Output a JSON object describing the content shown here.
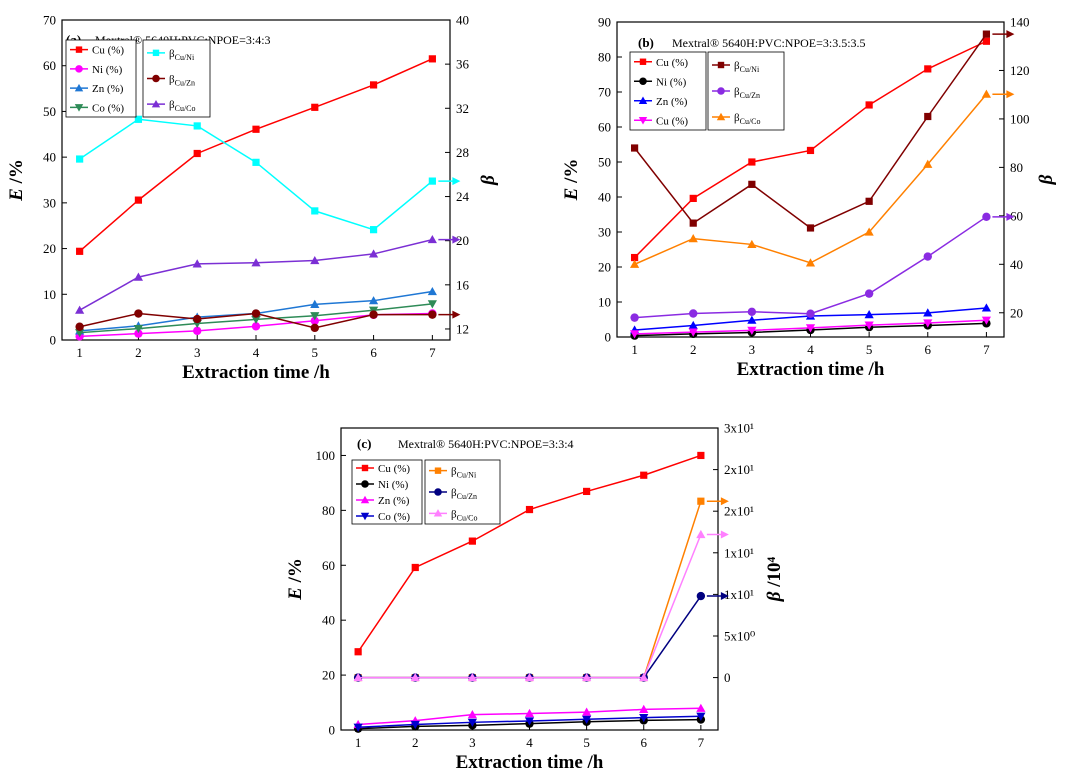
{
  "chart_data": [
    {
      "type": "line",
      "panel": "(a)",
      "title": "Mextral® 5640H:PVC:NPOE=3:4:3",
      "xlabel": "Extraction time /h",
      "ylabel_main": "E",
      "ylabel_unit": " /%",
      "y2label_main": "β",
      "y2label_unit": "",
      "x": [
        1,
        2,
        3,
        4,
        5,
        6,
        7
      ],
      "xlim": [
        0.7,
        7.3
      ],
      "ylim": [
        0,
        70
      ],
      "y2lim": [
        11,
        40
      ],
      "yticks": [
        0,
        10,
        20,
        30,
        40,
        50,
        60,
        70
      ],
      "y2ticks": [
        12,
        16,
        20,
        24,
        28,
        32,
        36,
        40
      ],
      "y2tick_labels": [
        "12",
        "16",
        "20",
        "24",
        "28",
        "32",
        "36",
        "40"
      ],
      "series": [
        {
          "name": "Cu (%)",
          "axis": "left",
          "color": "#ff0000",
          "marker": "square",
          "values": [
            19.4,
            30.6,
            40.8,
            46.1,
            50.9,
            55.8,
            61.5
          ]
        },
        {
          "name": "Ni (%)",
          "axis": "left",
          "color": "#ff00ff",
          "marker": "circle",
          "values": [
            0.8,
            1.4,
            2.0,
            3.0,
            4.2,
            5.5,
            5.8
          ]
        },
        {
          "name": "Zn (%)",
          "axis": "left",
          "color": "#1f77d4",
          "marker": "triangle-up",
          "values": [
            2.0,
            3.1,
            5.0,
            5.8,
            7.8,
            8.6,
            10.6
          ]
        },
        {
          "name": "Co (%)",
          "axis": "left",
          "color": "#2e8b57",
          "marker": "triangle-down",
          "values": [
            1.6,
            2.5,
            3.6,
            4.5,
            5.3,
            6.5,
            7.9
          ]
        },
        {
          "name": "βCu/Ni",
          "sub": "Cu/Ni",
          "axis": "right",
          "color": "#00ffff",
          "marker": "square",
          "values": [
            27.4,
            31.0,
            30.4,
            27.1,
            22.7,
            21.0,
            25.4
          ]
        },
        {
          "name": "βCu/Zn",
          "sub": "Cu/Zn",
          "axis": "right",
          "color": "#800000",
          "marker": "circle",
          "values": [
            12.2,
            13.4,
            12.9,
            13.4,
            12.1,
            13.3,
            13.3
          ]
        },
        {
          "name": "βCu/Co",
          "sub": "Cu/Co",
          "axis": "right",
          "color": "#7b2fd4",
          "marker": "triangle-up",
          "values": [
            13.7,
            16.7,
            17.9,
            18.0,
            18.2,
            18.8,
            20.1
          ]
        }
      ]
    },
    {
      "type": "line",
      "panel": "(b)",
      "title": "Mextral® 5640H:PVC:NPOE=3:3.5:3.5",
      "xlabel": "Extraction time /h",
      "ylabel_main": "E",
      "ylabel_unit": " /%",
      "y2label_main": "β",
      "y2label_unit": "",
      "x": [
        1,
        2,
        3,
        4,
        5,
        6,
        7
      ],
      "xlim": [
        0.7,
        7.3
      ],
      "ylim": [
        0,
        90
      ],
      "y2lim": [
        10,
        140
      ],
      "yticks": [
        0,
        10,
        20,
        30,
        40,
        50,
        60,
        70,
        80,
        90
      ],
      "y2ticks": [
        20,
        40,
        60,
        80,
        100,
        120,
        140
      ],
      "y2tick_labels": [
        "20",
        "40",
        "60",
        "80",
        "100",
        "120",
        "140"
      ],
      "series": [
        {
          "name": "Cu (%)",
          "axis": "left",
          "color": "#ff0000",
          "marker": "square",
          "values": [
            22.7,
            39.6,
            50.0,
            53.3,
            66.3,
            76.6,
            84.5
          ]
        },
        {
          "name": "Ni (%)",
          "axis": "left",
          "color": "#000000",
          "marker": "circle",
          "values": [
            0.4,
            0.9,
            1.3,
            2.0,
            2.8,
            3.3,
            3.9
          ]
        },
        {
          "name": "Zn (%)",
          "axis": "left",
          "color": "#0000ff",
          "marker": "triangle-up",
          "values": [
            2.0,
            3.3,
            4.8,
            6.0,
            6.4,
            6.9,
            8.3
          ]
        },
        {
          "name": "Cu (%)",
          "axis": "left",
          "color": "#ff00ff",
          "marker": "triangle-down",
          "values": [
            0.9,
            1.4,
            1.9,
            2.6,
            3.4,
            4.0,
            4.8
          ]
        },
        {
          "name": "βCu/Ni",
          "sub": "Cu/Ni",
          "axis": "right",
          "color": "#800000",
          "marker": "square",
          "values": [
            88,
            57,
            73,
            55,
            66,
            101,
            135
          ]
        },
        {
          "name": "βCu/Zn",
          "sub": "Cu/Zn",
          "axis": "right",
          "color": "#8a2be2",
          "marker": "circle",
          "values": [
            18,
            19.7,
            20.4,
            19.6,
            27.9,
            43.2,
            59.6
          ]
        },
        {
          "name": "βCu/Co",
          "sub": "Cu/Co",
          "axis": "right",
          "color": "#ff8000",
          "marker": "triangle-up",
          "values": [
            40,
            50.6,
            48.2,
            40.6,
            53.3,
            81.3,
            110.2
          ]
        }
      ]
    },
    {
      "type": "line",
      "panel": "(c)",
      "title": "Mextral® 5640H:PVC:NPOE=3:3:4",
      "xlabel": "Extraction time /h",
      "ylabel_main": "E",
      "ylabel_unit": " /%",
      "y2label_main": "β",
      "y2label_unit": " /10⁴",
      "x": [
        1,
        2,
        3,
        4,
        5,
        6,
        7
      ],
      "xlim": [
        0.7,
        7.3
      ],
      "ylim": [
        0,
        110
      ],
      "y2lim": [
        -6.3,
        30
      ],
      "yticks": [
        0,
        20,
        40,
        60,
        80,
        100
      ],
      "y2ticks": [
        0,
        5,
        10,
        15,
        20,
        25,
        30
      ],
      "y2tick_labels": [
        "0",
        "5x10⁰",
        "1x10¹",
        "1x10¹",
        "2x10¹",
        "2x10¹",
        "3x10¹"
      ],
      "series": [
        {
          "name": "Cu (%)",
          "axis": "left",
          "color": "#ff0000",
          "marker": "square",
          "values": [
            28.5,
            59.2,
            68.8,
            80.3,
            86.9,
            92.8,
            100.0
          ]
        },
        {
          "name": "Ni (%)",
          "axis": "left",
          "color": "#000000",
          "marker": "circle",
          "values": [
            0.5,
            1.3,
            1.7,
            2.3,
            3.0,
            3.5,
            3.8
          ]
        },
        {
          "name": "Zn (%)",
          "axis": "left",
          "color": "#ff00ff",
          "marker": "triangle-up",
          "values": [
            2.0,
            3.4,
            5.6,
            6.0,
            6.5,
            7.5,
            7.9
          ]
        },
        {
          "name": "Co (%)",
          "axis": "left",
          "color": "#0000cc",
          "marker": "triangle-down",
          "values": [
            1.0,
            2.0,
            2.8,
            3.3,
            3.9,
            4.5,
            5.0
          ]
        },
        {
          "name": "βCu/Ni",
          "sub": "Cu/Ni",
          "axis": "right",
          "color": "#ff8000",
          "marker": "square",
          "values": [
            0.0,
            0.0,
            0.0,
            0.0,
            0.0,
            0.0,
            21.2
          ]
        },
        {
          "name": "βCu/Zn",
          "sub": "Cu/Zn",
          "axis": "right",
          "color": "#000080",
          "marker": "circle",
          "values": [
            0.0,
            0.0,
            0.0,
            0.0,
            0.0,
            0.0,
            9.8
          ]
        },
        {
          "name": "βCu/Co",
          "sub": "Cu/Co",
          "axis": "right",
          "color": "#ff80ff",
          "marker": "triangle-up",
          "values": [
            0.0,
            0.0,
            0.0,
            0.0,
            0.0,
            0.0,
            17.2
          ]
        }
      ]
    }
  ]
}
